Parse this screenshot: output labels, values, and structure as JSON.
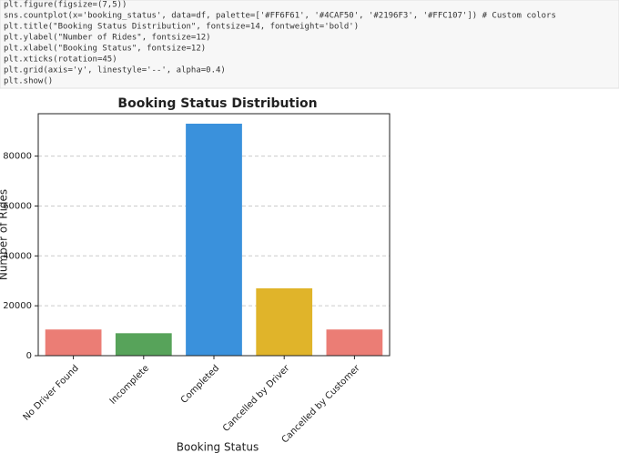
{
  "code": {
    "lines": [
      "plt.figure(figsize=(7,5))",
      "sns.countplot(x='booking_status', data=df, palette=['#FF6F61', '#4CAF50', '#2196F3', '#FFC107'])  # Custom colors",
      "plt.title(\"Booking Status Distribution\", fontsize=14, fontweight='bold')",
      "plt.ylabel(\"Number of Rides\", fontsize=12)",
      "plt.xlabel(\"Booking Status\", fontsize=12)",
      "plt.xticks(rotation=45)",
      "plt.grid(axis='y', linestyle='--', alpha=0.4)",
      "plt.show()"
    ]
  },
  "chart_data": {
    "type": "bar",
    "title": "Booking Status Distribution",
    "x_label": "Booking Status",
    "y_label": "Number of Rides",
    "categories": [
      "No Driver Found",
      "Incomplete",
      "Completed",
      "Cancelled by Driver",
      "Cancelled by Customer"
    ],
    "values": [
      10500,
      9000,
      93000,
      27000,
      10500
    ],
    "colors": [
      "#eb7d75",
      "#57a35a",
      "#3a91dc",
      "#e0b42a",
      "#eb7d75"
    ],
    "ylim": [
      0,
      97000
    ],
    "yticks": [
      0,
      20000,
      40000,
      60000,
      80000
    ],
    "grid": true
  }
}
